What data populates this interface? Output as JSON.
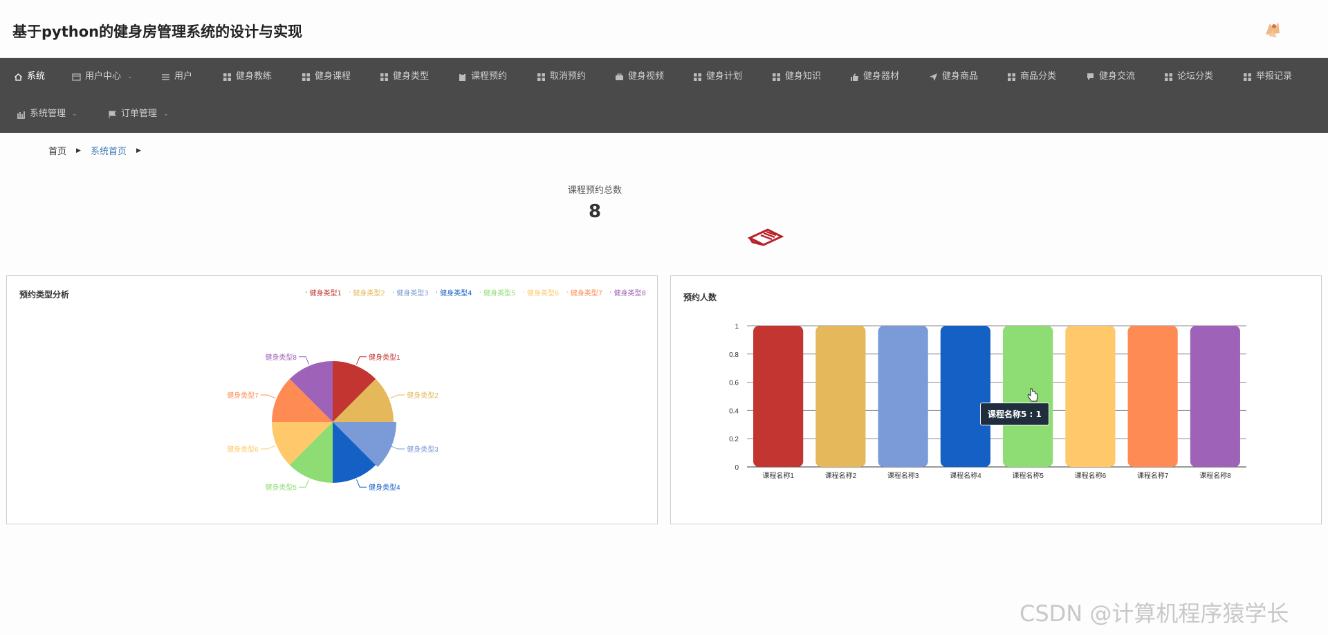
{
  "header": {
    "title": "基于python的健身房管理系统的设计与实现"
  },
  "nav": {
    "row1": [
      {
        "label": "系统",
        "icon": "home-icon",
        "active": true,
        "dropdown": false
      },
      {
        "label": "用户中心",
        "icon": "user-center-icon",
        "active": false,
        "dropdown": true
      },
      {
        "label": "用户",
        "icon": "list-icon",
        "active": false,
        "dropdown": false
      },
      {
        "label": "健身教练",
        "icon": "grid-icon",
        "active": false,
        "dropdown": false
      },
      {
        "label": "健身课程",
        "icon": "grid-icon",
        "active": false,
        "dropdown": false
      },
      {
        "label": "健身类型",
        "icon": "grid-icon",
        "active": false,
        "dropdown": false
      },
      {
        "label": "课程预约",
        "icon": "clipboard-icon",
        "active": false,
        "dropdown": false
      },
      {
        "label": "取消预约",
        "icon": "grid-icon",
        "active": false,
        "dropdown": false
      },
      {
        "label": "健身视频",
        "icon": "briefcase-icon",
        "active": false,
        "dropdown": false
      },
      {
        "label": "健身计划",
        "icon": "grid-icon",
        "active": false,
        "dropdown": false
      },
      {
        "label": "健身知识",
        "icon": "grid-icon",
        "active": false,
        "dropdown": false
      },
      {
        "label": "健身器材",
        "icon": "thumbs-up-icon",
        "active": false,
        "dropdown": false
      },
      {
        "label": "健身商品",
        "icon": "paper-plane-icon",
        "active": false,
        "dropdown": false
      },
      {
        "label": "商品分类",
        "icon": "grid-icon",
        "active": false,
        "dropdown": false
      },
      {
        "label": "健身交流",
        "icon": "chat-icon",
        "active": false,
        "dropdown": false
      },
      {
        "label": "论坛分类",
        "icon": "grid-icon",
        "active": false,
        "dropdown": false
      },
      {
        "label": "举报记录",
        "icon": "grid-icon",
        "active": false,
        "dropdown": false
      }
    ],
    "row2": [
      {
        "label": "系统管理",
        "icon": "bar-chart-icon",
        "dropdown": true
      },
      {
        "label": "订单管理",
        "icon": "flag-icon",
        "dropdown": true
      }
    ]
  },
  "breadcrumb": {
    "home": "首页",
    "current": "系统首页"
  },
  "stat": {
    "label": "课程预约总数",
    "value": "8"
  },
  "pie_panel": {
    "title": "预约类型分析"
  },
  "bar_panel": {
    "title": "预约人数"
  },
  "tooltip": {
    "text": "课程名称5 : 1"
  },
  "colors": [
    "#c23531",
    "#e5b85c",
    "#7a9ad8",
    "#1560c4",
    "#8ddc74",
    "#ffc86b",
    "#ff8b54",
    "#9e63b8"
  ],
  "watermark": "CSDN @计算机程序猿学长",
  "chart_data": [
    {
      "type": "pie",
      "title": "预约类型分析",
      "legend_position": "top-right",
      "categories": [
        "健身类型1",
        "健身类型2",
        "健身类型3",
        "健身类型4",
        "健身类型5",
        "健身类型6",
        "健身类型7",
        "健身类型8"
      ],
      "values": [
        1,
        1,
        1,
        1,
        1,
        1,
        1,
        1
      ],
      "highlighted_label": "健身类型3"
    },
    {
      "type": "bar",
      "title": "预约人数",
      "categories": [
        "课程名称1",
        "课程名称2",
        "课程名称3",
        "课程名称4",
        "课程名称5",
        "课程名称6",
        "课程名称7",
        "课程名称8"
      ],
      "values": [
        1,
        1,
        1,
        1,
        1,
        1,
        1,
        1
      ],
      "ylim": [
        0,
        1
      ],
      "yticks": [
        "0",
        "0.2",
        "0.4",
        "0.6",
        "0.8",
        "1"
      ],
      "grid": true
    }
  ]
}
